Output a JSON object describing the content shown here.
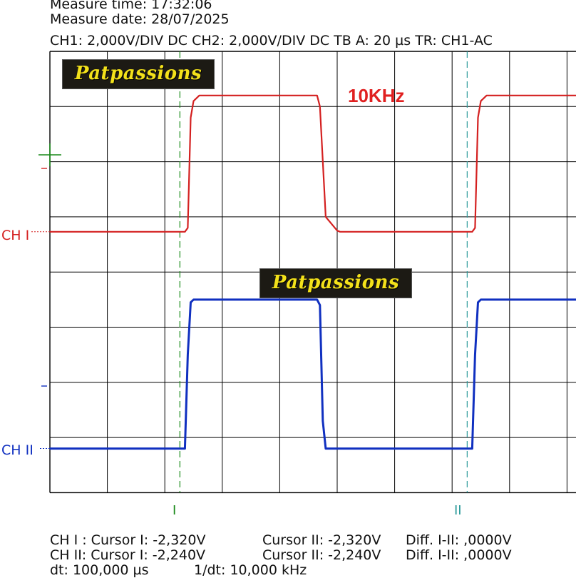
{
  "header": {
    "measure_time": "Measure time: 17:32:06",
    "measure_date": "Measure date: 28/07/2025",
    "settings": "CH1: 2,000V/DIV DC  CH2: 2,000V/DIV DC   TB A: 20 µs   TR: CH1-AC"
  },
  "watermarks": [
    "Patpassions",
    "Patpassions"
  ],
  "annotation": {
    "text": "10KHz",
    "color": "#e02020"
  },
  "channel_labels": {
    "ch1": "CH I",
    "ch2": "CH II"
  },
  "cursor_labels": {
    "cursor1": "I",
    "cursor2": "II"
  },
  "footer": {
    "ch1_line": "CH I :  Cursor I: -2,320V",
    "ch1_cursor2": "Cursor II: -2,320V",
    "ch1_diff": "Diff. I-II: ,0000V",
    "ch2_line": "CH II:  Cursor I: -2,240V",
    "ch2_cursor2": "Cursor II: -2,240V",
    "ch2_diff": "Diff. I-II: ,0000V",
    "dt": "dt: 100,000 µs",
    "inv_dt": "1/dt: 10,000 kHz"
  },
  "colors": {
    "ch1": "#d42020",
    "ch2": "#1030c0",
    "cursor1": "#1a8a1a",
    "cursor2": "#2a9a9a",
    "grid": "#000000"
  },
  "chart_data": {
    "type": "line",
    "time_per_div_us": 20,
    "volts_per_div": 2,
    "xlim_us": [
      0,
      200
    ],
    "ylim_div": [
      -4,
      4
    ],
    "grid": true,
    "series": [
      {
        "name": "CH I",
        "x_us": [
          0,
          47,
          48,
          49,
          50,
          52,
          58,
          93,
          94,
          96,
          100,
          101,
          147,
          148,
          149,
          150,
          152,
          158,
          200
        ],
        "y_div": [
          -0.27,
          -0.27,
          -0.2,
          1.8,
          2.1,
          2.2,
          2.2,
          2.2,
          2.0,
          0.0,
          -0.25,
          -0.27,
          -0.27,
          -0.2,
          1.8,
          2.1,
          2.2,
          2.2,
          2.2
        ]
      },
      {
        "name": "CH II",
        "x_us": [
          0,
          46,
          47,
          48,
          49,
          50,
          93,
          94,
          95,
          96,
          97,
          146,
          147,
          148,
          149,
          150,
          200
        ],
        "y_div": [
          -0.2,
          -0.2,
          -0.2,
          1.5,
          2.45,
          2.5,
          2.5,
          2.4,
          0.3,
          -0.2,
          -0.2,
          -0.2,
          -0.2,
          1.5,
          2.45,
          2.5,
          2.5
        ]
      }
    ],
    "cursors_us": [
      45,
      145
    ]
  }
}
